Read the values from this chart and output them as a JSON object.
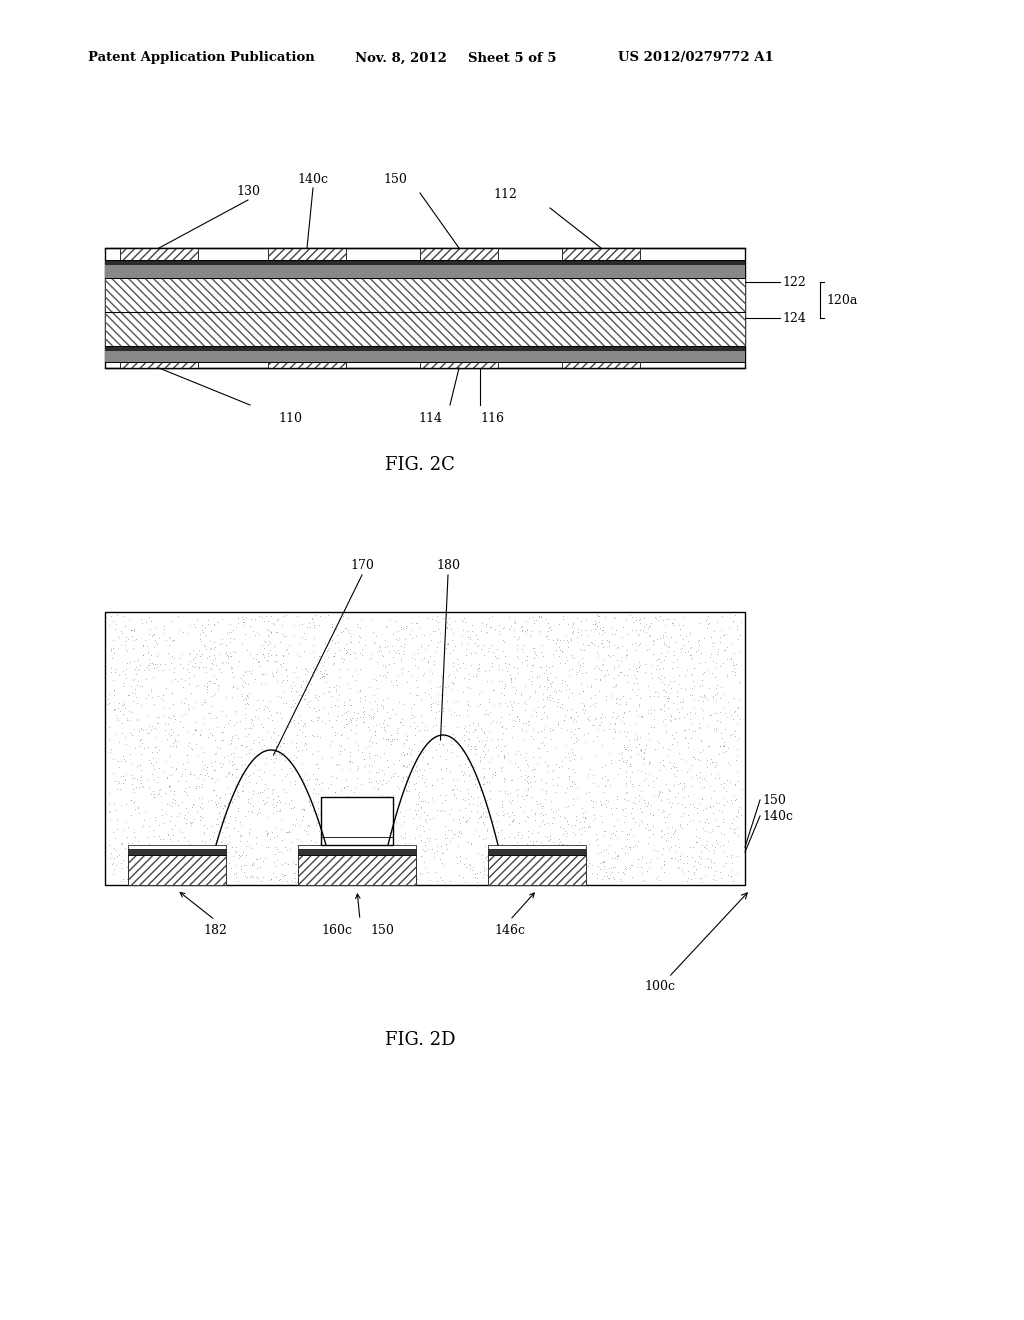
{
  "background_color": "#ffffff",
  "header_text": "Patent Application Publication",
  "header_date": "Nov. 8, 2012",
  "header_sheet": "Sheet 5 of 5",
  "header_patent": "US 2012/0279772 A1",
  "fig2c_label": "FIG. 2C",
  "fig2d_label": "FIG. 2D",
  "line_color": "#000000"
}
